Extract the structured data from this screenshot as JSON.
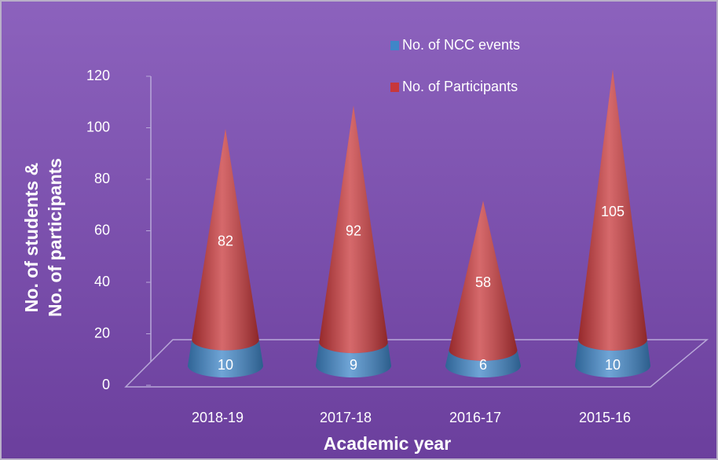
{
  "chart_data": {
    "type": "cone",
    "categories": [
      "2018-19",
      "2017-18",
      "2016-17",
      "2015-16"
    ],
    "series": [
      {
        "name": "No. of NCC events",
        "color": "#3f86c8",
        "values": [
          10,
          9,
          6,
          10
        ]
      },
      {
        "name": "No. of Participants",
        "color": "#c8373a",
        "values": [
          82,
          92,
          58,
          105
        ]
      }
    ],
    "stacked": true,
    "ylim": [
      0,
      120
    ],
    "yticks": [
      0,
      20,
      40,
      60,
      80,
      100,
      120
    ],
    "y_label": [
      "No. of students &",
      "No. of participants"
    ],
    "x_label": "Academic year",
    "legend": "top-right"
  }
}
